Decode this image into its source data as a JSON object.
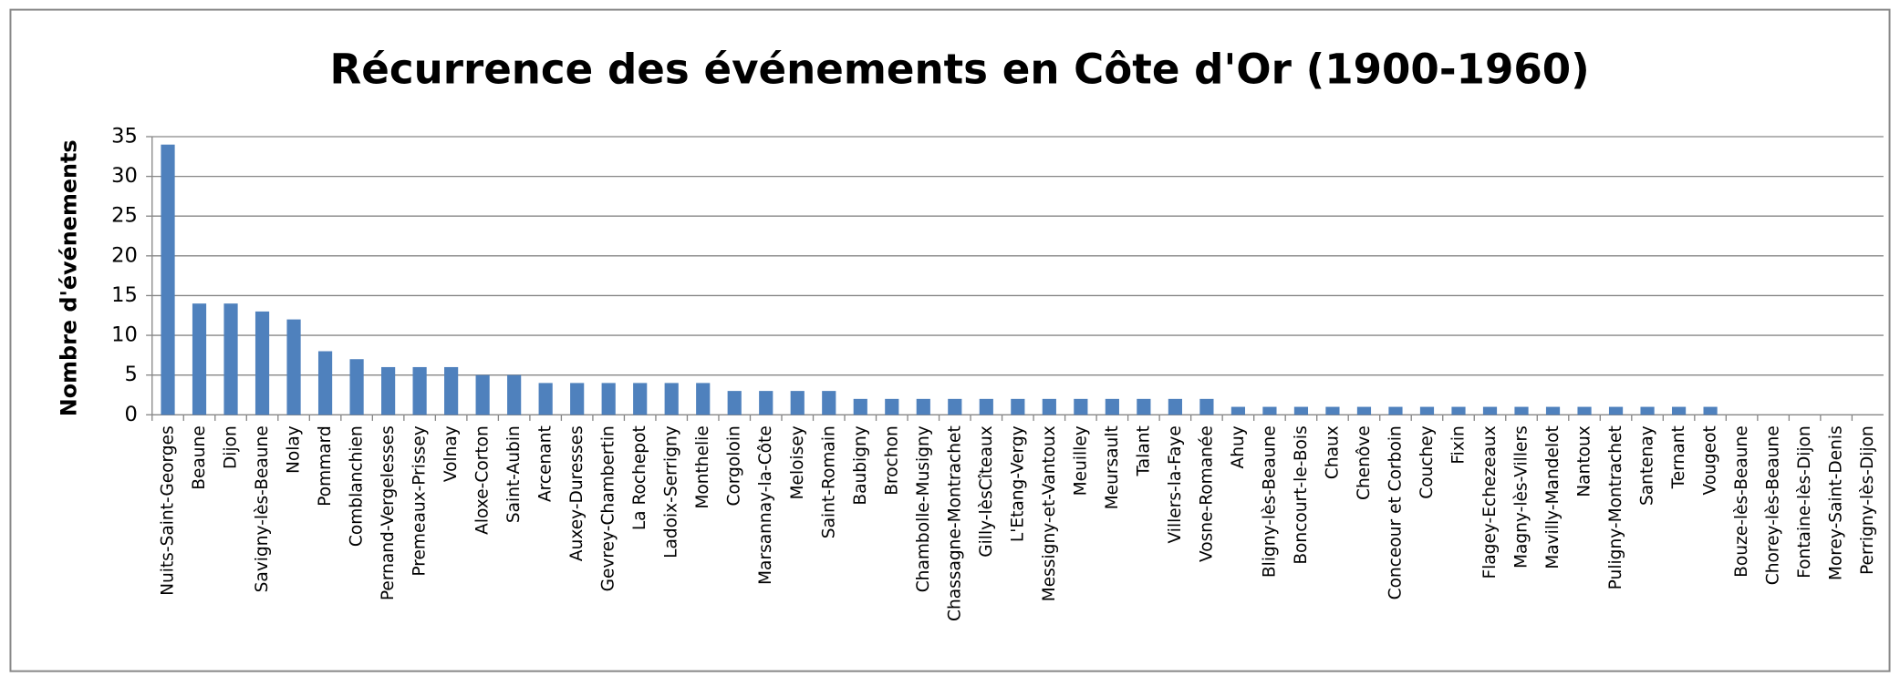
{
  "chart_data": {
    "type": "bar",
    "title": "Récurrence des événements en Côte d'Or (1900-1960)",
    "y_label": "Nombre d'événements",
    "categories": [
      "Nuits-Saint-Georges",
      "Beaune",
      "Dijon",
      "Savigny-lès-Beaune",
      "Nolay",
      "Pommard",
      "Comblanchien",
      "Pernand-Vergelesses",
      "Premeaux-Prissey",
      "Volnay",
      "Aloxe-Corton",
      "Saint-Aubin",
      "Arcenant",
      "Auxey-Duresses",
      "Gevrey-Chambertin",
      "La Rochepot",
      "Ladoix-Serrigny",
      "Monthelie",
      "Corgoloin",
      "Marsannay-la-Côte",
      "Meloisey",
      "Saint-Romain",
      "Baubigny",
      "Brochon",
      "Chambolle-Musigny",
      "Chassagne-Montrachet",
      "Gilly-lèsCîteaux",
      "L'Etang-Vergy",
      "Messigny-et-Vantoux",
      "Meuilley",
      "Meursault",
      "Talant",
      "Villers-la-Faye",
      "Vosne-Romanée",
      "Ahuy",
      "Bligny-lès-Beaune",
      "Boncourt-le-Bois",
      "Chaux",
      "Chenôve",
      "Conceour et Corboin",
      "Couchey",
      "Fixin",
      "Flagey-Echezeaux",
      "Magny-lès-Villers",
      "Mavilly-Mandelot",
      "Nantoux",
      "Puligny-Montrachet",
      "Santenay",
      "Ternant",
      "Vougeot",
      "Bouze-lès-Beaune",
      "Chorey-lès-Beaune",
      "Fontaine-lès-Dijon",
      "Morey-Saint-Denis",
      "Perrigny-lès-Dijon"
    ],
    "values": [
      34,
      14,
      14,
      13,
      12,
      8,
      7,
      6,
      6,
      6,
      5,
      5,
      4,
      4,
      4,
      4,
      4,
      4,
      3,
      3,
      3,
      3,
      2,
      2,
      2,
      2,
      2,
      2,
      2,
      2,
      2,
      2,
      2,
      2,
      1,
      1,
      1,
      1,
      1,
      1,
      1,
      1,
      1,
      1,
      1,
      1,
      1,
      1,
      1,
      1,
      0,
      0,
      0,
      0,
      0
    ],
    "color": "#4f81bd",
    "ylim": [
      0,
      35
    ],
    "yticks": [
      0,
      5,
      10,
      15,
      20,
      25,
      30,
      35
    ],
    "grid": true
  }
}
